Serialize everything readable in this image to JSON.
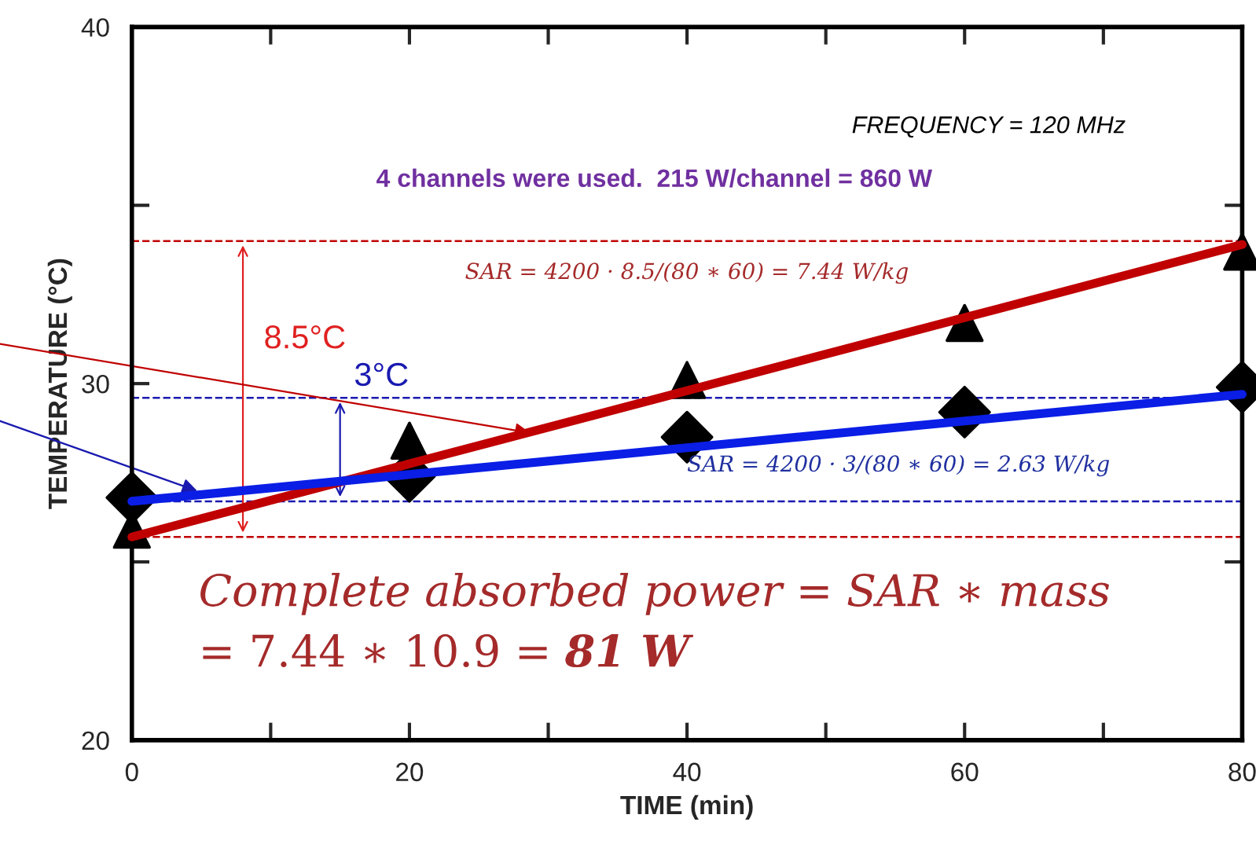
{
  "chart_data": {
    "type": "scatter",
    "xlabel": "TIME (min)",
    "ylabel": "TEMPERATURE (°C)",
    "x": [
      0,
      20,
      40,
      60,
      80
    ],
    "series": [
      {
        "type": "scatter",
        "marker": "triangle",
        "color": "#000000",
        "values": [
          25.9,
          28.4,
          30.1,
          31.7,
          33.7
        ]
      },
      {
        "type": "scatter",
        "marker": "diamond",
        "color": "#000000",
        "values": [
          26.8,
          27.4,
          28.5,
          29.2,
          29.9
        ]
      },
      {
        "type": "line",
        "color": "#c00000",
        "values": [
          25.7,
          27.75,
          29.8,
          31.85,
          33.9
        ]
      },
      {
        "type": "line",
        "color": "#0a1ee6",
        "values": [
          26.7,
          27.45,
          28.2,
          28.95,
          29.7
        ]
      }
    ],
    "ref_lines": [
      {
        "axis": "y",
        "value": 34.0,
        "color": "#c00000",
        "line_style": "dashed",
        "label": "8.5°C"
      },
      {
        "axis": "y",
        "value": 25.7,
        "color": "#c00000",
        "line_style": "dashed"
      },
      {
        "axis": "y",
        "value": 29.6,
        "color": "#1a1ab0",
        "line_style": "dashed",
        "label": "3°C"
      },
      {
        "axis": "y",
        "value": 26.7,
        "color": "#1a1ab0",
        "line_style": "dashed"
      }
    ],
    "annotations": [
      "FREQUENCY = 120 MHz",
      "4 channels were used.  215 W/channel = 860 W",
      "SAR = 4200 · 8.5/(80 ∗ 60) = 7.44 W/kg",
      "SAR = 4200 · 3/(80 ∗ 60) = 2.63 W/kg",
      "Complete absorbed power = SAR ∗ mass",
      "= 7.44 ∗ 10.9 =",
      "81 W"
    ],
    "xlim": [
      0,
      80
    ],
    "ylim": [
      20,
      40
    ],
    "xticks": [
      0,
      {
        "value": 10,
        "label": null
      },
      20,
      {
        "value": 30,
        "label": null
      },
      40,
      {
        "value": 50,
        "label": null
      },
      60,
      {
        "value": 70,
        "label": null
      },
      80
    ],
    "yticks": [
      20,
      {
        "value": 25,
        "label": null
      },
      30,
      {
        "value": 35,
        "label": null
      },
      40
    ],
    "grid": false,
    "legend": false
  }
}
